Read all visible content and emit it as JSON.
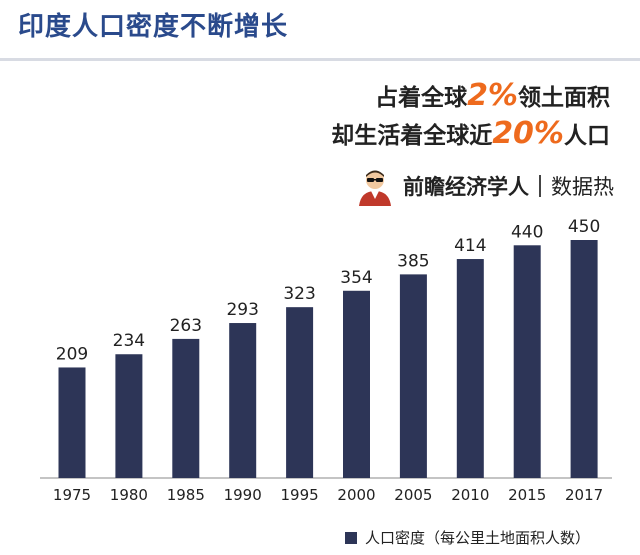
{
  "header": {
    "title": "印度人口密度不断增长"
  },
  "headline": {
    "line1_pre": "占着全球",
    "line1_num": "2%",
    "line1_post": "领土面积",
    "line2_pre": "却生活着全球近",
    "line2_num": "20%",
    "line2_post": "人口"
  },
  "brand": {
    "name": "前瞻经济学人",
    "sub": "数据热"
  },
  "colors": {
    "bar": "#2d3557",
    "title": "#2a4a8c",
    "accent": "#ee6a1d"
  },
  "chart_data": {
    "type": "bar",
    "categories": [
      "1975",
      "1980",
      "1985",
      "1990",
      "1995",
      "2000",
      "2005",
      "2010",
      "2015",
      "2017"
    ],
    "series": [
      {
        "name": "人口密度（每公里土地面积人数）",
        "values": [
          209,
          234,
          263,
          293,
          323,
          354,
          385,
          414,
          440,
          450
        ]
      }
    ],
    "ylim": [
      0,
      450
    ],
    "grid": false,
    "legend": "bottom-right"
  }
}
